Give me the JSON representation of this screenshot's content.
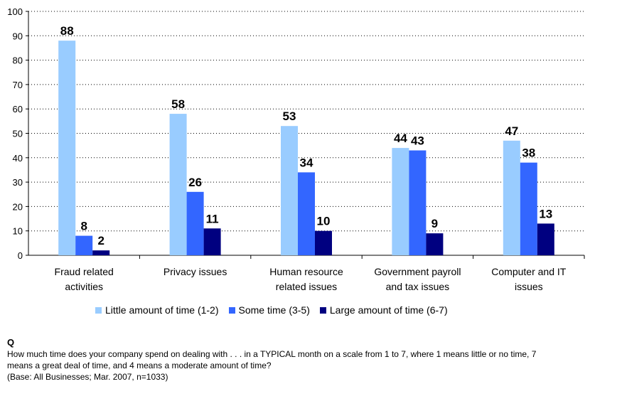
{
  "chart_data": {
    "type": "bar",
    "categories": [
      [
        "Fraud related",
        "activities"
      ],
      [
        "Privacy issues"
      ],
      [
        "Human resource",
        "related issues"
      ],
      [
        "Government payroll",
        "and tax issues"
      ],
      [
        "Computer and IT",
        "issues"
      ]
    ],
    "series": [
      {
        "name": "Little amount of time (1-2)",
        "color": "#99CCFF",
        "values": [
          88,
          58,
          53,
          44,
          47
        ]
      },
      {
        "name": "Some time (3-5)",
        "color": "#3366FF",
        "values": [
          8,
          26,
          34,
          43,
          38
        ]
      },
      {
        "name": "Large amount of time (6-7)",
        "color": "#000080",
        "values": [
          2,
          11,
          10,
          9,
          13
        ]
      }
    ],
    "ylim": [
      0,
      100
    ],
    "yticks": [
      0,
      10,
      20,
      30,
      40,
      50,
      60,
      70,
      80,
      90,
      100
    ],
    "grid": true,
    "legend": "bottom",
    "title": "",
    "xlabel": "",
    "ylabel": ""
  },
  "footnote": {
    "q": "Q",
    "lines": [
      "How much time does your company spend on dealing with . . . in a TYPICAL month on a scale from 1 to 7, where 1 means little or no time, 7",
      "means a great deal of time, and 4 means a moderate amount of time?",
      "(Base: All Businesses; Mar. 2007, n=1033)"
    ]
  }
}
